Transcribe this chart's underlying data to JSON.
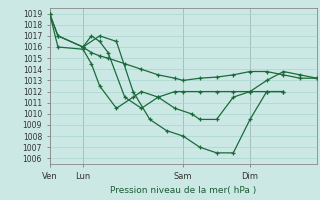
{
  "bg_color": "#cce8e4",
  "grid_color": "#aad4d0",
  "line_color": "#1a6b3a",
  "title": "Pression niveau de la mer( hPa )",
  "ylim": [
    1005.5,
    1019.5
  ],
  "yticks": [
    1006,
    1007,
    1008,
    1009,
    1010,
    1011,
    1012,
    1013,
    1014,
    1015,
    1016,
    1017,
    1018,
    1019
  ],
  "xtick_labels": [
    "Ven",
    "Lun",
    "Sam",
    "Dim"
  ],
  "xtick_positions": [
    0,
    24,
    96,
    144
  ],
  "xmax": 192,
  "series1_x": [
    0,
    6,
    24,
    30,
    36,
    42,
    54,
    66,
    78,
    90,
    96,
    108,
    120,
    132,
    144,
    156,
    168,
    180,
    192
  ],
  "series1_y": [
    1019,
    1017,
    1016,
    1017,
    1016.5,
    1015.5,
    1011.5,
    1010.5,
    1011.5,
    1012,
    1012,
    1012,
    1012,
    1012,
    1012,
    1013,
    1013.8,
    1013.5,
    1013.2
  ],
  "series2_x": [
    0,
    6,
    24,
    30,
    36,
    42,
    54,
    66,
    78,
    90,
    96,
    108,
    120,
    132,
    144,
    156,
    168,
    180,
    192
  ],
  "series2_y": [
    1019,
    1017,
    1016,
    1015.5,
    1015.2,
    1015.0,
    1014.5,
    1014.0,
    1013.5,
    1013.2,
    1013.0,
    1013.2,
    1013.3,
    1013.5,
    1013.8,
    1013.8,
    1013.5,
    1013.2,
    1013.2
  ],
  "series3_x": [
    0,
    6,
    24,
    30,
    36,
    48,
    60,
    66,
    78,
    90,
    102,
    108,
    120,
    132,
    144,
    156,
    168
  ],
  "series3_y": [
    1019,
    1016,
    1015.8,
    1014.5,
    1012.5,
    1010.5,
    1011.5,
    1012,
    1011.5,
    1010.5,
    1010,
    1009.5,
    1009.5,
    1011.5,
    1012,
    1012,
    1012
  ],
  "series4_x": [
    24,
    36,
    48,
    60,
    72,
    84,
    96,
    108,
    120,
    132,
    144,
    156,
    168
  ],
  "series4_y": [
    1016,
    1017,
    1016.5,
    1012,
    1009.5,
    1008.5,
    1008,
    1007,
    1006.5,
    1006.5,
    1009.5,
    1012,
    1012
  ]
}
